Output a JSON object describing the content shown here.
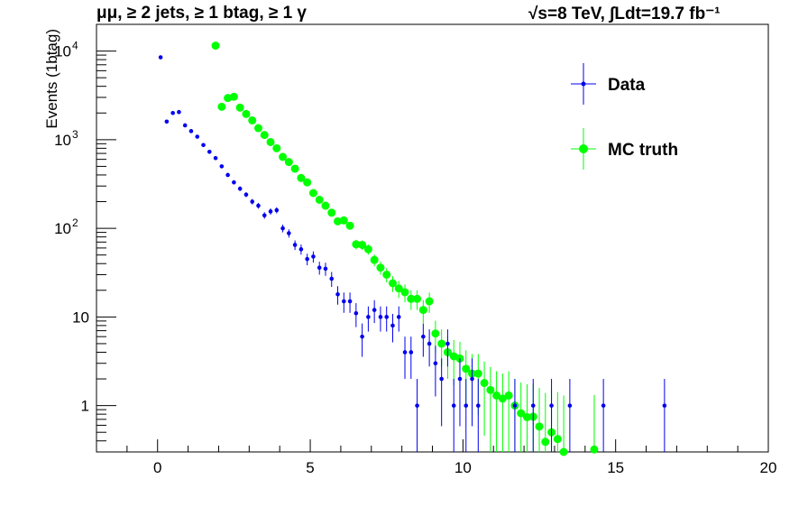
{
  "header": {
    "title_left": "μμ, ≥ 2 jets, ≥ 1 btag, ≥ 1 γ",
    "title_right": "√s=8 TeV,   ∫Ldt=19.7 fb⁻¹"
  },
  "chart_data": {
    "type": "scatter",
    "title": "μμ, ≥ 2 jets, ≥ 1 btag, ≥ 1 γ",
    "xlabel": "",
    "ylabel": "Events (1btag)",
    "xlim": [
      -2,
      20
    ],
    "ylim": [
      0.3,
      20000
    ],
    "yscale": "log",
    "xticks": [
      "0",
      "5",
      "10",
      "15",
      "20"
    ],
    "yticks": [
      "1",
      "10",
      "10^2",
      "10^3",
      "10^4"
    ],
    "grid": false,
    "legend_position": "top-right",
    "series": [
      {
        "name": "Data",
        "color": "#0000ee",
        "marker": "small-dot",
        "points": [
          [
            0.1,
            8500
          ],
          [
            0.3,
            1600
          ],
          [
            0.5,
            2000
          ],
          [
            0.7,
            2050
          ],
          [
            0.9,
            1450
          ],
          [
            1.1,
            1250
          ],
          [
            1.3,
            1080
          ],
          [
            1.5,
            870
          ],
          [
            1.7,
            730
          ],
          [
            1.9,
            620
          ],
          [
            2.1,
            500
          ],
          [
            2.3,
            400
          ],
          [
            2.5,
            330
          ],
          [
            2.7,
            280
          ],
          [
            2.9,
            240
          ],
          [
            3.1,
            200
          ],
          [
            3.3,
            180
          ],
          [
            3.5,
            140
          ],
          [
            3.7,
            155
          ],
          [
            3.9,
            160
          ],
          [
            4.1,
            100
          ],
          [
            4.3,
            88
          ],
          [
            4.5,
            65
          ],
          [
            4.7,
            58
          ],
          [
            4.9,
            45
          ],
          [
            5.1,
            48
          ],
          [
            5.3,
            36
          ],
          [
            5.5,
            35
          ],
          [
            5.7,
            27
          ],
          [
            5.9,
            18
          ],
          [
            6.1,
            15
          ],
          [
            6.3,
            15
          ],
          [
            6.5,
            11
          ],
          [
            6.7,
            6
          ],
          [
            6.9,
            10
          ],
          [
            7.1,
            12
          ],
          [
            7.3,
            10
          ],
          [
            7.5,
            10
          ],
          [
            7.7,
            8
          ],
          [
            7.9,
            10
          ],
          [
            8.1,
            4
          ],
          [
            8.3,
            4
          ],
          [
            8.5,
            1
          ],
          [
            8.7,
            6
          ],
          [
            8.9,
            5
          ],
          [
            9.1,
            3
          ],
          [
            9.3,
            2
          ],
          [
            9.5,
            5
          ],
          [
            9.7,
            1
          ],
          [
            9.9,
            2
          ],
          [
            10.1,
            1
          ],
          [
            10.3,
            2
          ],
          [
            10.5,
            1
          ],
          [
            11.7,
            1
          ],
          [
            12.3,
            1
          ],
          [
            12.9,
            1
          ],
          [
            13.5,
            1
          ],
          [
            14.6,
            1
          ],
          [
            16.6,
            1
          ]
        ]
      },
      {
        "name": "MC truth",
        "color": "#00ff00",
        "marker": "filled-circle",
        "points": [
          [
            1.9,
            11500
          ],
          [
            2.1,
            2350
          ],
          [
            2.3,
            2950
          ],
          [
            2.5,
            3050
          ],
          [
            2.7,
            2300
          ],
          [
            2.9,
            1950
          ],
          [
            3.1,
            1650
          ],
          [
            3.3,
            1350
          ],
          [
            3.5,
            1130
          ],
          [
            3.7,
            940
          ],
          [
            3.9,
            800
          ],
          [
            4.1,
            640
          ],
          [
            4.3,
            560
          ],
          [
            4.5,
            470
          ],
          [
            4.7,
            370
          ],
          [
            4.9,
            330
          ],
          [
            5.1,
            250
          ],
          [
            5.3,
            210
          ],
          [
            5.5,
            180
          ],
          [
            5.7,
            150
          ],
          [
            5.9,
            120
          ],
          [
            6.1,
            123
          ],
          [
            6.3,
            107
          ],
          [
            6.5,
            66
          ],
          [
            6.7,
            65
          ],
          [
            6.9,
            58
          ],
          [
            7.1,
            44
          ],
          [
            7.3,
            36
          ],
          [
            7.5,
            30
          ],
          [
            7.7,
            24
          ],
          [
            7.9,
            21
          ],
          [
            8.1,
            19
          ],
          [
            8.3,
            16
          ],
          [
            8.5,
            16
          ],
          [
            8.7,
            12
          ],
          [
            8.9,
            15
          ],
          [
            9.1,
            6.5
          ],
          [
            9.3,
            5
          ],
          [
            9.5,
            4
          ],
          [
            9.7,
            3.6
          ],
          [
            9.9,
            3.4
          ],
          [
            10.1,
            2.6
          ],
          [
            10.3,
            2.3
          ],
          [
            10.5,
            2.3
          ],
          [
            10.7,
            1.8
          ],
          [
            10.9,
            1.5
          ],
          [
            11.1,
            1.3
          ],
          [
            11.3,
            1.2
          ],
          [
            11.5,
            1.3
          ],
          [
            11.7,
            1
          ],
          [
            11.9,
            0.82
          ],
          [
            12.1,
            0.74
          ],
          [
            12.3,
            0.75
          ],
          [
            12.5,
            0.58
          ],
          [
            12.7,
            0.39
          ],
          [
            12.9,
            0.5
          ],
          [
            13.1,
            0.42
          ],
          [
            13.3,
            0.3
          ],
          [
            14.3,
            0.32
          ]
        ]
      }
    ]
  }
}
